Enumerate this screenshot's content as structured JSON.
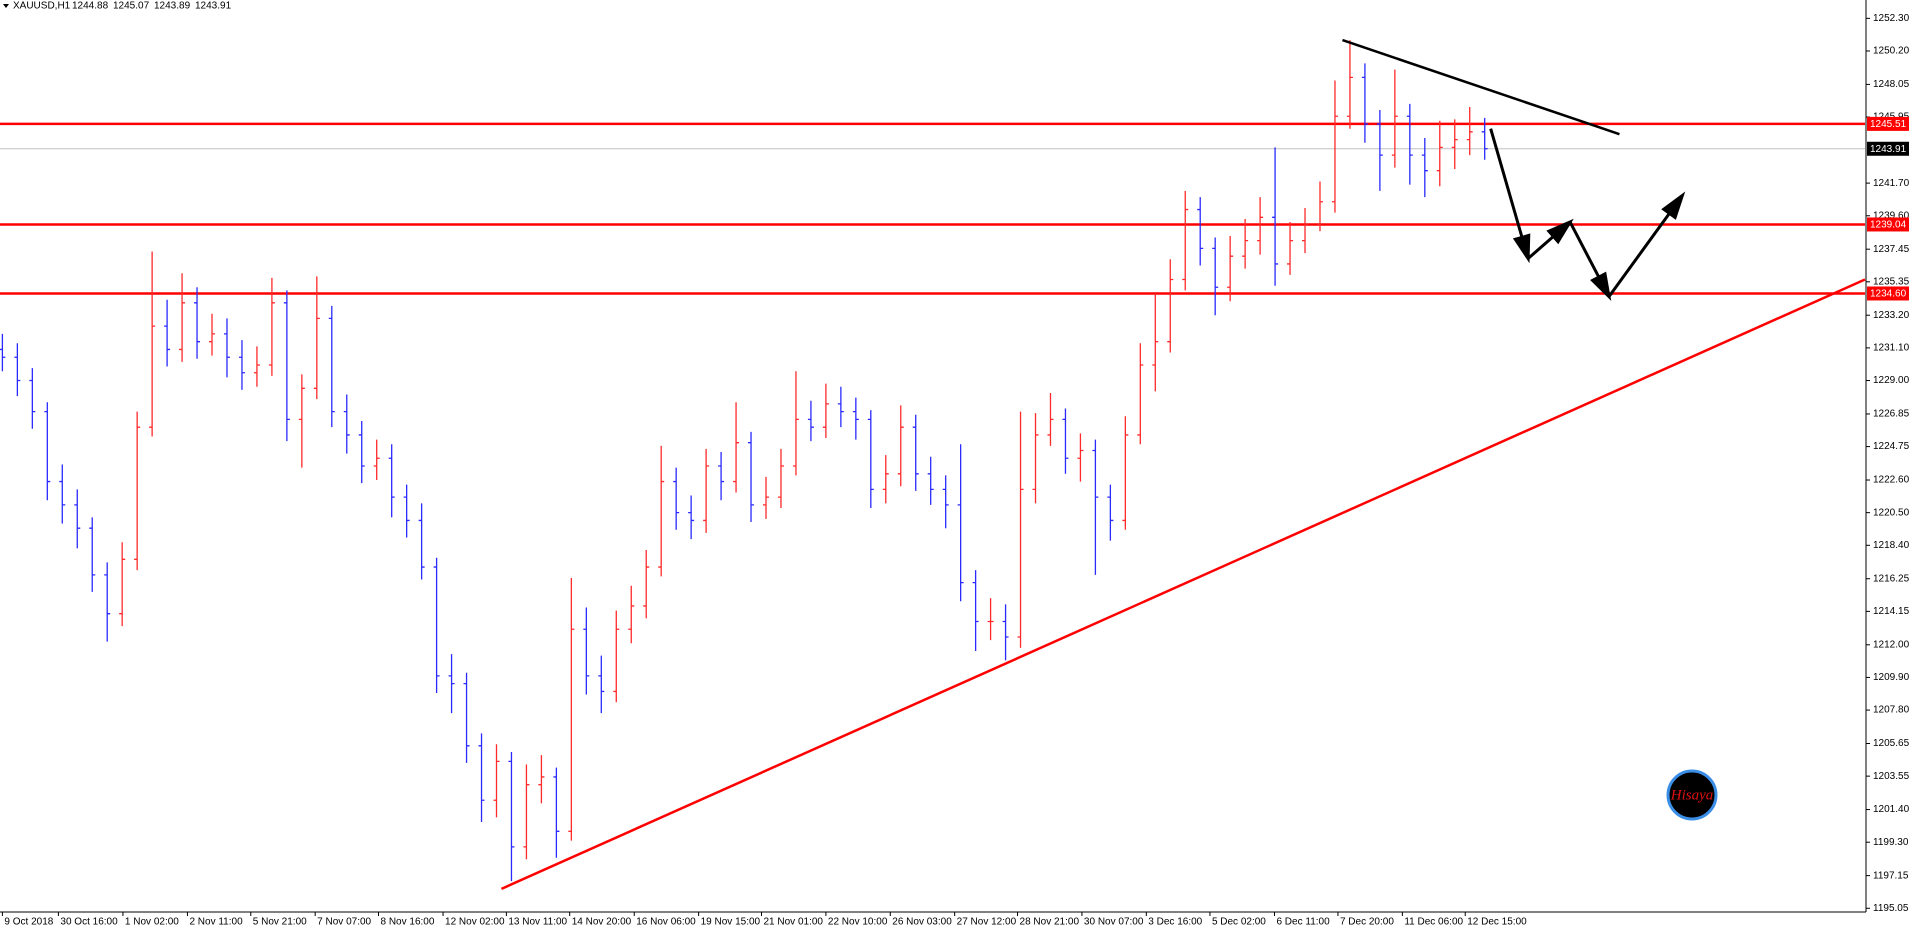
{
  "chart_data": {
    "type": "ohlc",
    "symbol": "XAUUSD,H1",
    "quote": [
      1244.88,
      1245.07,
      1243.89,
      1243.91
    ],
    "up_color": "#ff2a2a",
    "down_color": "#2a2aff",
    "bars": {
      "x": [
        0,
        1,
        2,
        3,
        4,
        5,
        6,
        7,
        8,
        9,
        10,
        11,
        12,
        13,
        14,
        15,
        16,
        17,
        18,
        19,
        20,
        21,
        22,
        23,
        24,
        25,
        26,
        27,
        28,
        29,
        30,
        31,
        32,
        33,
        34,
        35,
        36,
        37,
        38,
        39,
        40,
        41,
        42,
        43,
        44,
        45,
        46,
        47,
        48,
        49,
        50,
        51,
        52,
        53,
        54,
        55,
        56,
        57,
        58,
        59,
        60,
        61,
        62,
        63,
        64,
        65,
        66,
        67,
        68,
        69,
        70,
        71,
        72,
        73,
        74,
        75,
        76,
        77,
        78,
        79,
        80,
        81,
        82,
        83,
        84,
        85,
        86,
        87,
        88,
        89,
        90,
        91,
        92,
        93,
        94,
        95,
        96,
        97,
        98,
        99
      ],
      "open": [
        1231,
        1230.5,
        1229,
        1227,
        1222.5,
        1221,
        1219.5,
        1216.5,
        1214,
        1217.5,
        1226,
        1232.5,
        1231,
        1234,
        1231.5,
        1232,
        1230.5,
        1229.5,
        1230,
        1234,
        1226.5,
        1228.5,
        1233,
        1227,
        1225.5,
        1223.5,
        1224,
        1221.5,
        1220,
        1217,
        1210,
        1209.5,
        1205.5,
        1202,
        1204.5,
        1199,
        1203,
        1203.5,
        1200,
        1213,
        1210,
        1209,
        1213,
        1214.5,
        1217,
        1222.5,
        1220.5,
        1220,
        1223.5,
        1222.5,
        1225,
        1221,
        1221.5,
        1223.5,
        1226.5,
        1226,
        1227.5,
        1227,
        1226.5,
        1222,
        1223,
        1226,
        1223,
        1222,
        1221,
        1216,
        1213.5,
        1213.5,
        1212.5,
        1222,
        1225.5,
        1226.5,
        1224,
        1224.5,
        1221.5,
        1220,
        1225.5,
        1230,
        1231.5,
        1235.5,
        1240,
        1237.5,
        1235,
        1237,
        1238,
        1239.5,
        1236.5,
        1238,
        1239,
        1240.5,
        1246,
        1248.5,
        1245.5,
        1243.5,
        1246,
        1243.5,
        1242.5,
        1244,
        1244.5,
        1245
      ],
      "high": [
        1232,
        1231.4,
        1229.8,
        1227.6,
        1223.6,
        1222,
        1220.2,
        1217.3,
        1218.6,
        1227,
        1237.3,
        1234.2,
        1235.9,
        1235,
        1233.3,
        1233,
        1231.6,
        1231.2,
        1235.6,
        1234.8,
        1229.4,
        1235.7,
        1233.8,
        1228.1,
        1226.4,
        1225.2,
        1224.9,
        1222.3,
        1221.1,
        1217.6,
        1211.4,
        1210.2,
        1206.3,
        1205.6,
        1205.1,
        1204.3,
        1204.9,
        1204.1,
        1216.3,
        1214.4,
        1211.3,
        1214.2,
        1215.8,
        1218.1,
        1224.8,
        1223.4,
        1221.6,
        1224.6,
        1224.4,
        1227.6,
        1225.7,
        1222.8,
        1224.6,
        1229.6,
        1227.7,
        1228.8,
        1228.6,
        1227.9,
        1227.1,
        1224.2,
        1227.4,
        1226.8,
        1224.1,
        1222.9,
        1224.9,
        1216.8,
        1215,
        1214.6,
        1227,
        1226.9,
        1228.2,
        1227.2,
        1225.6,
        1225.2,
        1222.3,
        1226.7,
        1231.4,
        1234.6,
        1236.8,
        1241.2,
        1240.8,
        1238.2,
        1238.3,
        1239.4,
        1240.8,
        1244,
        1239.2,
        1240.1,
        1241.8,
        1248.3,
        1250.9,
        1249.4,
        1246.4,
        1249,
        1246.8,
        1244.6,
        1245.7,
        1245.8,
        1246.6,
        1245.9
      ],
      "low": [
        1229.6,
        1228,
        1225.9,
        1221.3,
        1219.8,
        1218.2,
        1215.4,
        1212.2,
        1213.2,
        1216.8,
        1225.4,
        1229.9,
        1230.2,
        1230.4,
        1230.6,
        1229.2,
        1228.4,
        1228.6,
        1229.3,
        1225.1,
        1223.4,
        1227.8,
        1226,
        1224.3,
        1222.4,
        1222.6,
        1220.2,
        1218.9,
        1216.2,
        1208.9,
        1207.6,
        1204.4,
        1200.6,
        1200.9,
        1196.8,
        1198.2,
        1201.8,
        1198.3,
        1199.4,
        1208.8,
        1207.6,
        1208.3,
        1212.1,
        1213.7,
        1216.4,
        1219.4,
        1218.8,
        1219.2,
        1221.3,
        1221.8,
        1219.9,
        1220.1,
        1220.8,
        1222.9,
        1225.1,
        1225.3,
        1226,
        1225.2,
        1220.8,
        1221.1,
        1222.2,
        1221.9,
        1221,
        1219.5,
        1214.8,
        1211.6,
        1212.3,
        1211,
        1211.8,
        1221.1,
        1224.8,
        1223,
        1222.5,
        1216.5,
        1218.7,
        1219.4,
        1224.9,
        1228.3,
        1230.8,
        1234.8,
        1236.4,
        1233.2,
        1234.1,
        1236.2,
        1237.1,
        1235.1,
        1235.8,
        1237.2,
        1238.6,
        1239.8,
        1245.2,
        1244.3,
        1241.2,
        1242.7,
        1241.6,
        1240.8,
        1241.5,
        1242.6,
        1243.5,
        1243.2
      ],
      "close": [
        1230.5,
        1229,
        1227,
        1222.5,
        1221,
        1219.5,
        1216.5,
        1214,
        1217.5,
        1226,
        1232.5,
        1231,
        1234,
        1231.5,
        1232,
        1230.5,
        1229.5,
        1230,
        1234,
        1226.5,
        1228.5,
        1233,
        1227,
        1225.5,
        1223.5,
        1224,
        1221.5,
        1220,
        1217,
        1210,
        1209.5,
        1205.5,
        1202,
        1204.5,
        1199,
        1203,
        1203.5,
        1200,
        1213,
        1210,
        1209,
        1213,
        1214.5,
        1217,
        1222.5,
        1220.5,
        1220,
        1223.5,
        1222.5,
        1225,
        1221,
        1221.5,
        1223.5,
        1226.5,
        1226,
        1227.5,
        1227,
        1226.5,
        1222,
        1223,
        1226,
        1223,
        1222,
        1221,
        1216,
        1213.5,
        1213.5,
        1212.5,
        1222,
        1225.5,
        1226.5,
        1224,
        1224.5,
        1221.5,
        1220,
        1225.5,
        1230,
        1231.5,
        1235.5,
        1240,
        1237.5,
        1235,
        1237,
        1238,
        1239.5,
        1236.5,
        1238,
        1239,
        1240.5,
        1246,
        1248.5,
        1245.5,
        1243.5,
        1246,
        1243.5,
        1242.5,
        1244,
        1244.5,
        1245,
        1243.91
      ]
    },
    "xlim": [
      -0.16,
      124.4
    ],
    "xticks": [
      {
        "value": 0,
        "label": "9 Oct 2018"
      },
      {
        "value": 3.74,
        "label": "30 Oct 16:00"
      },
      {
        "value": 8.05,
        "label": "1 Nov 02:00"
      },
      {
        "value": 12.36,
        "label": "2 Nov 11:00"
      },
      {
        "value": 16.59,
        "label": "5 Nov 21:00"
      },
      {
        "value": 20.89,
        "label": "7 Nov 07:00"
      },
      {
        "value": 25.12,
        "label": "8 Nov 16:00"
      },
      {
        "value": 29.43,
        "label": "12 Nov 02:00"
      },
      {
        "value": 33.66,
        "label": "13 Nov 11:00"
      },
      {
        "value": 37.89,
        "label": "14 Nov 20:00"
      },
      {
        "value": 42.2,
        "label": "16 Nov 06:00"
      },
      {
        "value": 46.5,
        "label": "19 Nov 15:00"
      },
      {
        "value": 50.7,
        "label": "21 Nov 01:00"
      },
      {
        "value": 55.0,
        "label": "22 Nov 10:00"
      },
      {
        "value": 59.3,
        "label": "26 Nov 03:00"
      },
      {
        "value": 63.6,
        "label": "27 Nov 12:00"
      },
      {
        "value": 67.8,
        "label": "28 Nov 21:00"
      },
      {
        "value": 72.1,
        "label": "30 Nov 07:00"
      },
      {
        "value": 76.4,
        "label": "3 Dec 16:00"
      },
      {
        "value": 80.65,
        "label": "5 Dec 02:00"
      },
      {
        "value": 84.96,
        "label": "6 Dec 11:00"
      },
      {
        "value": 89.2,
        "label": "7 Dec 20:00"
      },
      {
        "value": 93.5,
        "label": "11 Dec 06:00"
      },
      {
        "value": 97.7,
        "label": "12 Dec 15:00"
      }
    ],
    "ylim": [
      1194.81,
      1253.48
    ],
    "yticks": [
      {
        "value": 1252.3,
        "label": "1252.30"
      },
      {
        "value": 1250.2,
        "label": "1250.20"
      },
      1248.05,
      1245.95,
      {
        "value": 1241.7,
        "label": "1241.70"
      },
      {
        "value": 1239.6,
        "label": "1239.60"
      },
      1237.45,
      1235.35,
      {
        "value": 1233.2,
        "label": "1233.20"
      },
      {
        "value": 1231.1,
        "label": "1231.10"
      },
      {
        "value": 1229,
        "label": "1229.00"
      },
      1226.85,
      1224.75,
      {
        "value": 1222.6,
        "label": "1222.60"
      },
      {
        "value": 1220.5,
        "label": "1220.50"
      },
      {
        "value": 1218.4,
        "label": "1218.40"
      },
      1216.25,
      1214.15,
      {
        "value": 1212,
        "label": "1212.00"
      },
      {
        "value": 1209.9,
        "label": "1209.90"
      },
      {
        "value": 1207.8,
        "label": "1207.80"
      },
      1205.65,
      1203.55,
      {
        "value": 1201.4,
        "label": "1201.40"
      },
      {
        "value": 1199.3,
        "label": "1199.30"
      },
      1197.15,
      1195.05
    ],
    "levels": [
      1245.51,
      1239.04,
      {
        "value": 1234.6,
        "label": "1234.60"
      }
    ],
    "level_color": "#ff0000",
    "current_price": 1243.91,
    "trendlines": [
      {
        "points": [
          [
            33.33,
            1196.3
          ],
          [
            124.4,
            1235.5
          ]
        ],
        "color": "#ff0000"
      },
      {
        "points": [
          [
            89.5,
            1250.9
          ],
          [
            108,
            1244.85
          ]
        ],
        "color": "#000000"
      }
    ],
    "forecast": {
      "points": [
        [
          99.4,
          1245.2
        ],
        [
          101.9,
          1236.85
        ],
        [
          104.7,
          1239.2
        ],
        [
          107.3,
          1234.4
        ],
        [
          112.2,
          1240.9
        ]
      ],
      "color": "#000000"
    },
    "watermark": "Hisaya"
  }
}
